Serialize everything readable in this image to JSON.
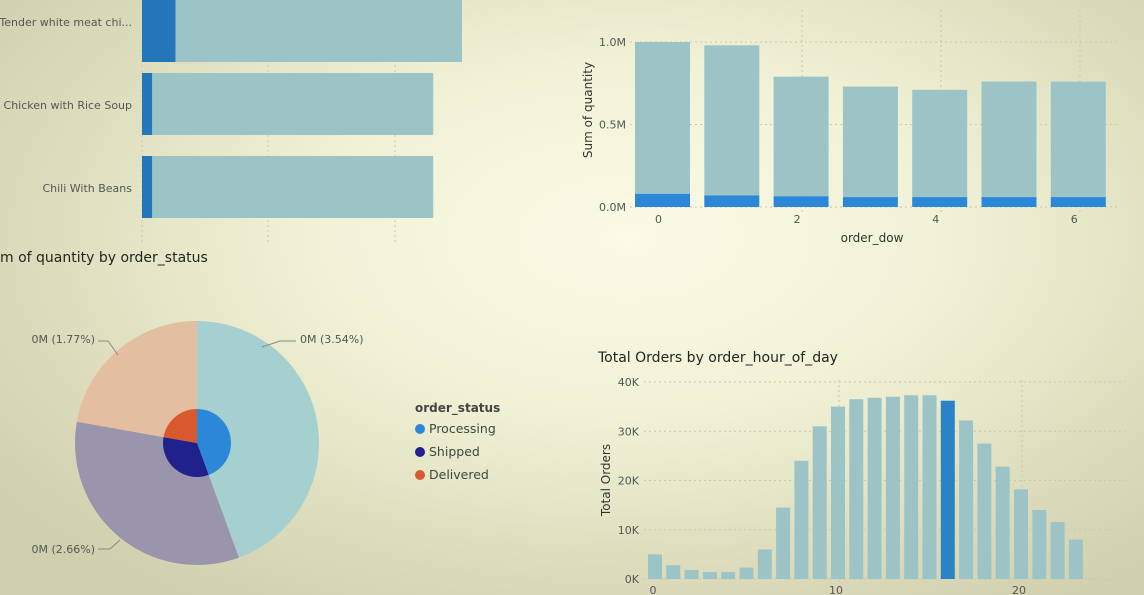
{
  "chart_data": [
    {
      "id": "products",
      "type": "bar",
      "orientation": "horizontal",
      "categories": [
        "Tender white meat chi...",
        "Chicken with Rice Soup",
        "Chili With Beans"
      ],
      "series": [
        {
          "values": [
            0.21,
            0.064,
            0.064
          ]
        },
        {
          "values": [
            1.79,
            1.756,
            1.756
          ]
        }
      ]
    },
    {
      "id": "dow",
      "type": "bar",
      "categories": [
        0,
        1,
        2,
        3,
        4,
        5,
        6
      ],
      "series": [
        {
          "values": [
            0.08,
            0.07,
            0.065,
            0.06,
            0.06,
            0.06,
            0.06
          ]
        },
        {
          "values": [
            1.0,
            0.98,
            0.79,
            0.73,
            0.71,
            0.76,
            0.76
          ]
        }
      ],
      "xlabel": "order_dow",
      "ylabel": "Sum of quantity",
      "yticks": [
        "0.0M",
        "0.5M",
        "1.0M"
      ],
      "xticks": [
        "0",
        "2",
        "4",
        "6"
      ],
      "ylim": [
        0,
        1.0
      ]
    },
    {
      "id": "status",
      "type": "pie",
      "title": "m of quantity by order_status",
      "outer_slices": [
        {
          "value": 3.54,
          "label": "0M (3.54%)",
          "color": "#a6cfd0"
        },
        {
          "value": 2.66,
          "label": "0M (2.66%)",
          "color": "#9a94ac"
        },
        {
          "value": 1.77,
          "label": "0M (1.77%)",
          "color": "#e4bea0"
        }
      ],
      "inner_slices": [
        {
          "name": "Processing",
          "value": 3.54,
          "color": "#2b88d8"
        },
        {
          "name": "Shipped",
          "value": 2.66,
          "color": "#20218c"
        },
        {
          "name": "Delivered",
          "value": 1.77,
          "color": "#d9592f"
        }
      ],
      "legend_title": "order_status",
      "legend_position": "right"
    },
    {
      "id": "hour",
      "type": "bar",
      "title": "Total Orders by order_hour_of_day",
      "categories": [
        0,
        1,
        2,
        3,
        4,
        5,
        6,
        7,
        8,
        9,
        10,
        11,
        12,
        13,
        14,
        15,
        16,
        17,
        18,
        19,
        20,
        21,
        22,
        23
      ],
      "values": [
        5000,
        2800,
        1800,
        1400,
        1400,
        2300,
        6000,
        14500,
        24000,
        31000,
        35000,
        36500,
        36800,
        37000,
        37300,
        37300,
        36200,
        32200,
        27500,
        22800,
        18200,
        14000,
        11600,
        8000
      ],
      "highlight_index": 16,
      "xlabel": "",
      "ylabel": "Total Orders",
      "yticks": [
        "0K",
        "10K",
        "20K",
        "30K",
        "40K"
      ],
      "xticks": [
        "0",
        "10",
        "20"
      ],
      "ylim": [
        0,
        40000
      ]
    }
  ],
  "colors": {
    "bar": "#9cc4c6",
    "bar_highlight": "#2b83c7",
    "bar_dark": "#2376b8"
  }
}
